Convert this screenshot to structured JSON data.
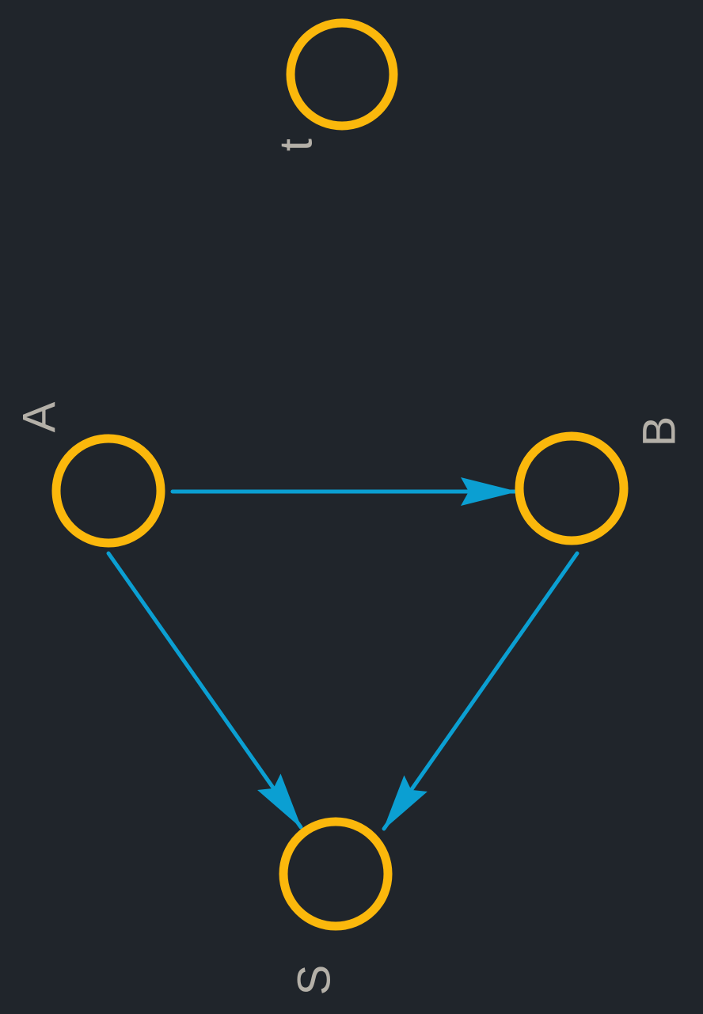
{
  "colors": {
    "background": "#20252b",
    "node_stroke": "#fbb80c",
    "edge": "#0b9fd2",
    "label": "#b4b0a8"
  },
  "nodes": {
    "t": {
      "label": "t"
    },
    "A": {
      "label": "A"
    },
    "B": {
      "label": "B"
    },
    "S": {
      "label": "S"
    }
  },
  "edges": [
    {
      "from": "A",
      "to": "B",
      "directed": true
    },
    {
      "from": "A",
      "to": "S",
      "directed": true
    },
    {
      "from": "B",
      "to": "S",
      "directed": true
    }
  ]
}
